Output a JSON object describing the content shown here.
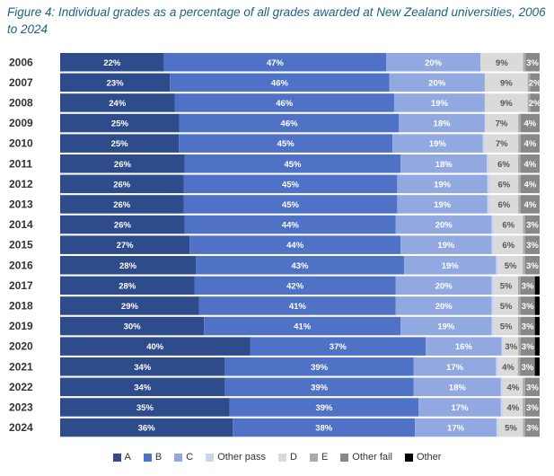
{
  "title": "Figure 4: Individual grades as a percentage of all grades awarded at New Zealand universities, 2006 to 2024",
  "chart_data": {
    "type": "bar",
    "orientation": "horizontal",
    "stacked": true,
    "normalized_percent": true,
    "categories": [
      "2006",
      "2007",
      "2008",
      "2009",
      "2010",
      "2011",
      "2012",
      "2013",
      "2014",
      "2015",
      "2016",
      "2017",
      "2018",
      "2019",
      "2020",
      "2021",
      "2022",
      "2023",
      "2024"
    ],
    "series": [
      {
        "name": "A",
        "color": "#2e4c8c",
        "values": [
          22,
          23,
          24,
          25,
          25,
          26,
          26,
          26,
          26,
          27,
          28,
          28,
          29,
          30,
          40,
          34,
          34,
          35,
          36
        ],
        "labels": [
          "22%",
          "23%",
          "24%",
          "25%",
          "25%",
          "26%",
          "26%",
          "26%",
          "26%",
          "27%",
          "28%",
          "28%",
          "29%",
          "30%",
          "40%",
          "34%",
          "34%",
          "35%",
          "36%"
        ]
      },
      {
        "name": "B",
        "color": "#4f72c7",
        "values": [
          47,
          46,
          46,
          46,
          45,
          45,
          45,
          45,
          44,
          44,
          43,
          42,
          41,
          41,
          37,
          39,
          39,
          39,
          38
        ],
        "labels": [
          "47%",
          "46%",
          "46%",
          "46%",
          "45%",
          "45%",
          "45%",
          "45%",
          "44%",
          "44%",
          "43%",
          "42%",
          "41%",
          "41%",
          "37%",
          "39%",
          "39%",
          "39%",
          "38%"
        ]
      },
      {
        "name": "C",
        "color": "#92a8e0",
        "values": [
          20,
          20,
          19,
          18,
          19,
          18,
          19,
          19,
          20,
          19,
          19,
          20,
          20,
          19,
          16,
          17,
          18,
          17,
          17
        ],
        "labels": [
          "20%",
          "20%",
          "19%",
          "18%",
          "19%",
          "18%",
          "19%",
          "19%",
          "20%",
          "19%",
          "19%",
          "20%",
          "20%",
          "19%",
          "16%",
          "17%",
          "18%",
          "17%",
          "17%"
        ]
      },
      {
        "name": "Other pass",
        "color": "#c8d6ef",
        "values": [
          0,
          0,
          0,
          0,
          0.5,
          0.5,
          0.5,
          0.5,
          0.5,
          0.5,
          0.5,
          0.5,
          0.5,
          0.5,
          0.5,
          0.5,
          0.5,
          0.5,
          0.5
        ],
        "labels": [
          "",
          "",
          "",
          "",
          "",
          "",
          "",
          "",
          "",
          "",
          "",
          "",
          "",
          "",
          "",
          "",
          "",
          "",
          ""
        ]
      },
      {
        "name": "D",
        "color": "#dadada",
        "values": [
          9,
          9,
          9,
          7,
          7,
          6,
          6,
          6,
          6,
          6,
          5,
          5,
          5,
          5,
          3,
          4,
          4,
          4,
          5
        ],
        "labels": [
          "9%",
          "9%",
          "9%",
          "7%",
          "7%",
          "6%",
          "6%",
          "6%",
          "6%",
          "6%",
          "5%",
          "5%",
          "5%",
          "5%",
          "3%",
          "4%",
          "4%",
          "4%",
          "5%"
        ]
      },
      {
        "name": "E",
        "color": "#ababab",
        "values": [
          0.5,
          0.5,
          0.5,
          0.5,
          0.5,
          0.5,
          0.5,
          0.5,
          0.5,
          0.5,
          0.5,
          0.5,
          0.5,
          0.5,
          0.5,
          0.5,
          0.5,
          0.5,
          0.5
        ],
        "labels": [
          "",
          "",
          "",
          "",
          "",
          "",
          "",
          "",
          "",
          "",
          "",
          "",
          "",
          "",
          "",
          "",
          "",
          "",
          ""
        ]
      },
      {
        "name": "Other fail",
        "color": "#888888",
        "values": [
          3,
          2,
          2,
          4,
          4,
          4,
          4,
          4,
          3,
          3,
          3,
          3,
          3,
          3,
          3,
          3,
          3,
          3,
          3
        ],
        "labels": [
          "3%",
          "2%",
          "2%",
          "4%",
          "4%",
          "4%",
          "4%",
          "4%",
          "3%",
          "3%",
          "3%",
          "3%",
          "3%",
          "3%",
          "3%",
          "3%",
          "3%",
          "3%",
          "3%"
        ]
      },
      {
        "name": "Other",
        "color": "#000000",
        "values": [
          0,
          0,
          0,
          0,
          0,
          0,
          0,
          0,
          0,
          0,
          0,
          1,
          1,
          1,
          1,
          1,
          0,
          0,
          0
        ],
        "labels": [
          "",
          "",
          "",
          "",
          "",
          "",
          "",
          "",
          "",
          "",
          "",
          "",
          "",
          "",
          "",
          "",
          "",
          "",
          ""
        ]
      }
    ],
    "label_colors": {
      "A": "#ffffff",
      "B": "#ffffff",
      "C": "#ffffff",
      "Other pass": "#555555",
      "D": "#555555",
      "E": "#555555",
      "Other fail": "#ffffff",
      "Other": "#ffffff"
    },
    "legend_position": "bottom",
    "grid": false,
    "xlabel": "",
    "ylabel": ""
  }
}
